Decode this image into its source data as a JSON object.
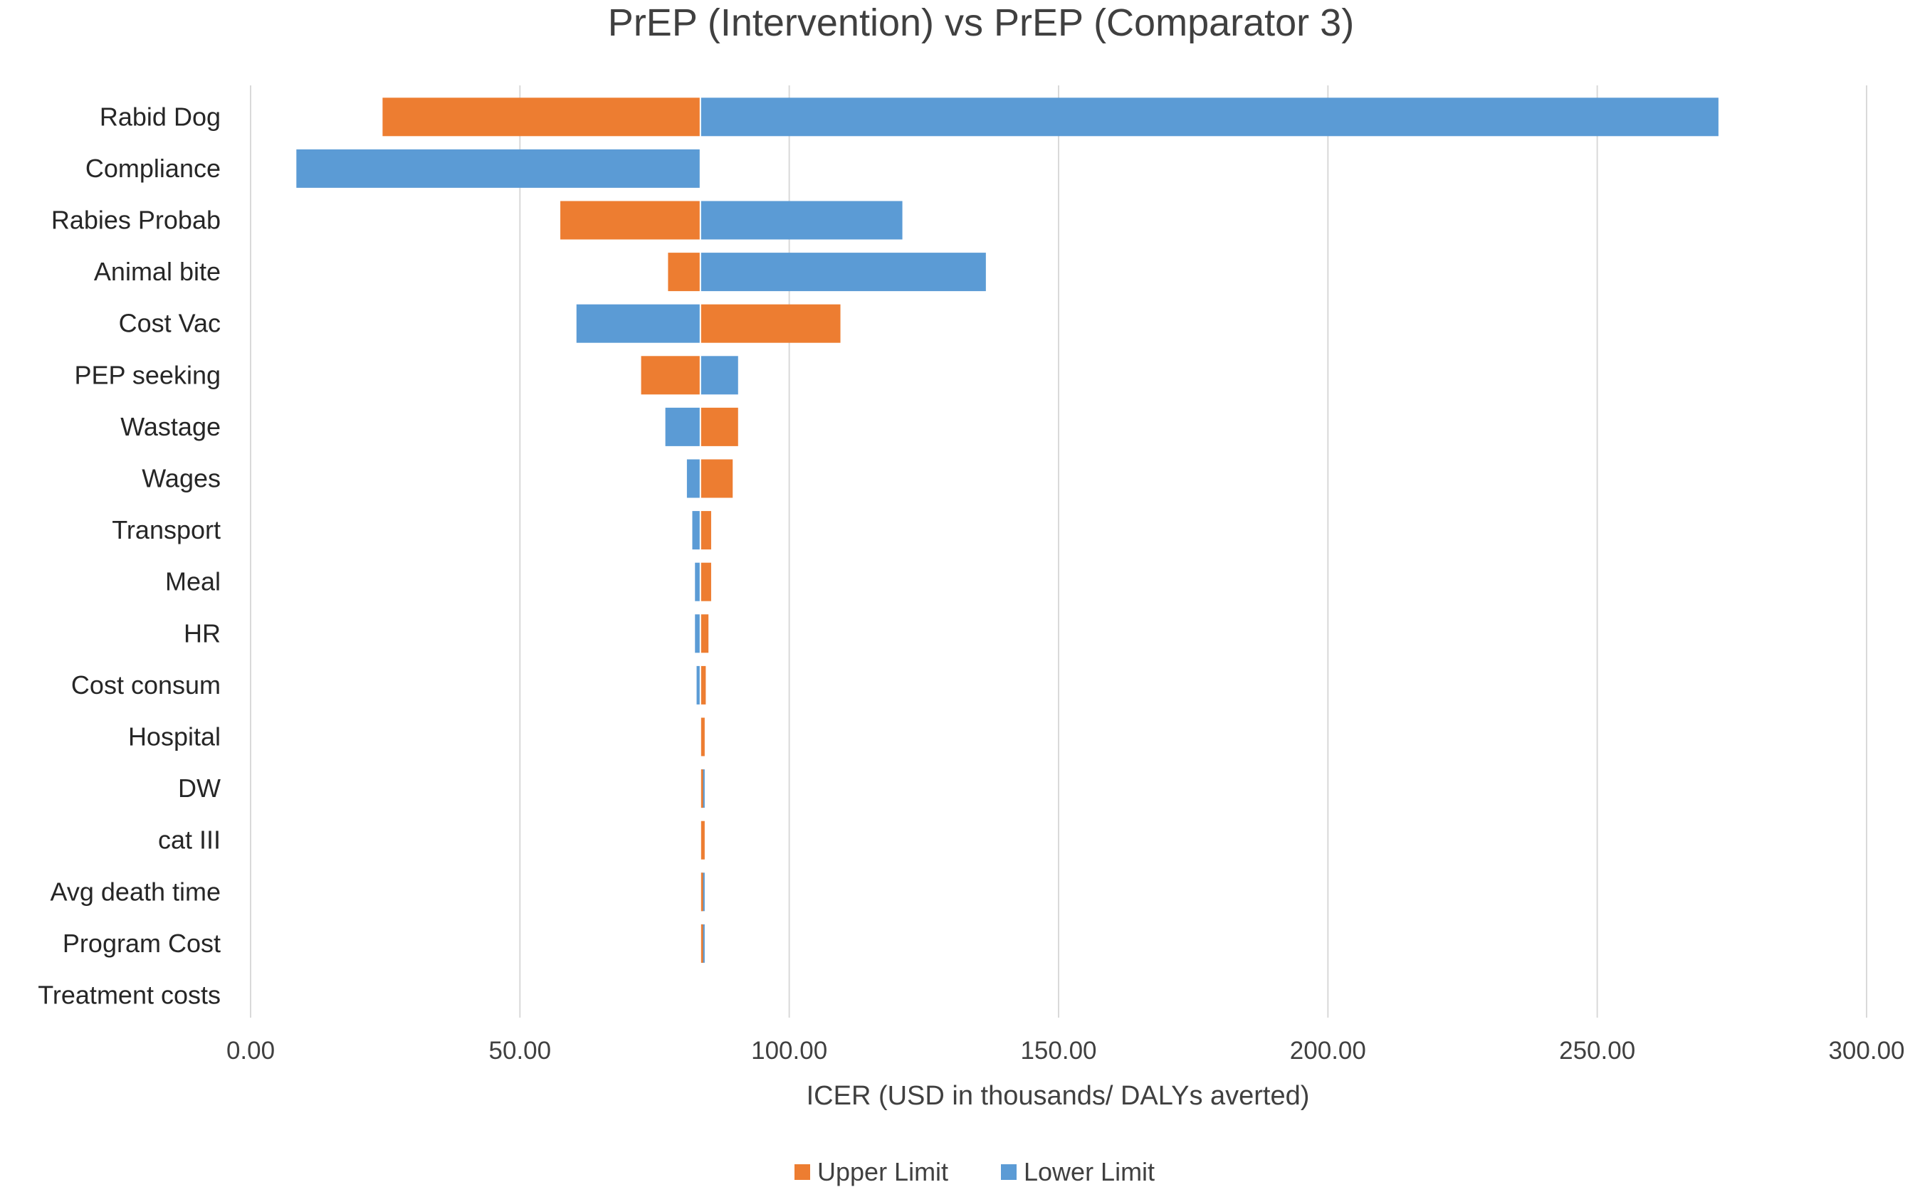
{
  "chart_data": {
    "type": "tornado",
    "title": "PrEP (Intervention) vs PrEP (Comparator 3)",
    "xlabel": "ICER (USD in thousands/ DALYs averted)",
    "ylabel": "",
    "xlim": [
      0,
      300
    ],
    "xticks": [
      0,
      50,
      100,
      150,
      200,
      250,
      300
    ],
    "xtick_labels": [
      "0.00",
      "50.00",
      "100.00",
      "150.00",
      "200.00",
      "250.00",
      "300.00"
    ],
    "base": 83.5,
    "categories": [
      "Rabid Dog",
      "Compliance",
      "Rabies Probab",
      "Animal bite",
      "Cost Vac",
      "PEP seeking",
      "Wastage",
      "Wages",
      "Transport",
      "Meal",
      "HR",
      "Cost consum",
      "Hospital",
      "DW",
      "cat III",
      "Avg death time",
      "Program Cost",
      "Treatment costs"
    ],
    "series": [
      {
        "name": "Upper Limit",
        "color": "#ed7d31",
        "values": [
          24.5,
          83.5,
          57.5,
          77.5,
          109.5,
          72.5,
          90.5,
          89.5,
          85.5,
          85.5,
          85.0,
          84.5,
          84.3,
          84.0,
          84.3,
          84.0,
          84.0,
          83.5
        ]
      },
      {
        "name": "Lower Limit",
        "color": "#5b9bd5",
        "values": [
          272.5,
          8.5,
          121.0,
          136.5,
          60.5,
          90.5,
          77.0,
          81.0,
          82.0,
          82.5,
          82.5,
          82.8,
          83.5,
          84.3,
          83.5,
          84.3,
          84.3,
          83.5
        ]
      }
    ],
    "legend_position": "bottom",
    "grid": true
  }
}
